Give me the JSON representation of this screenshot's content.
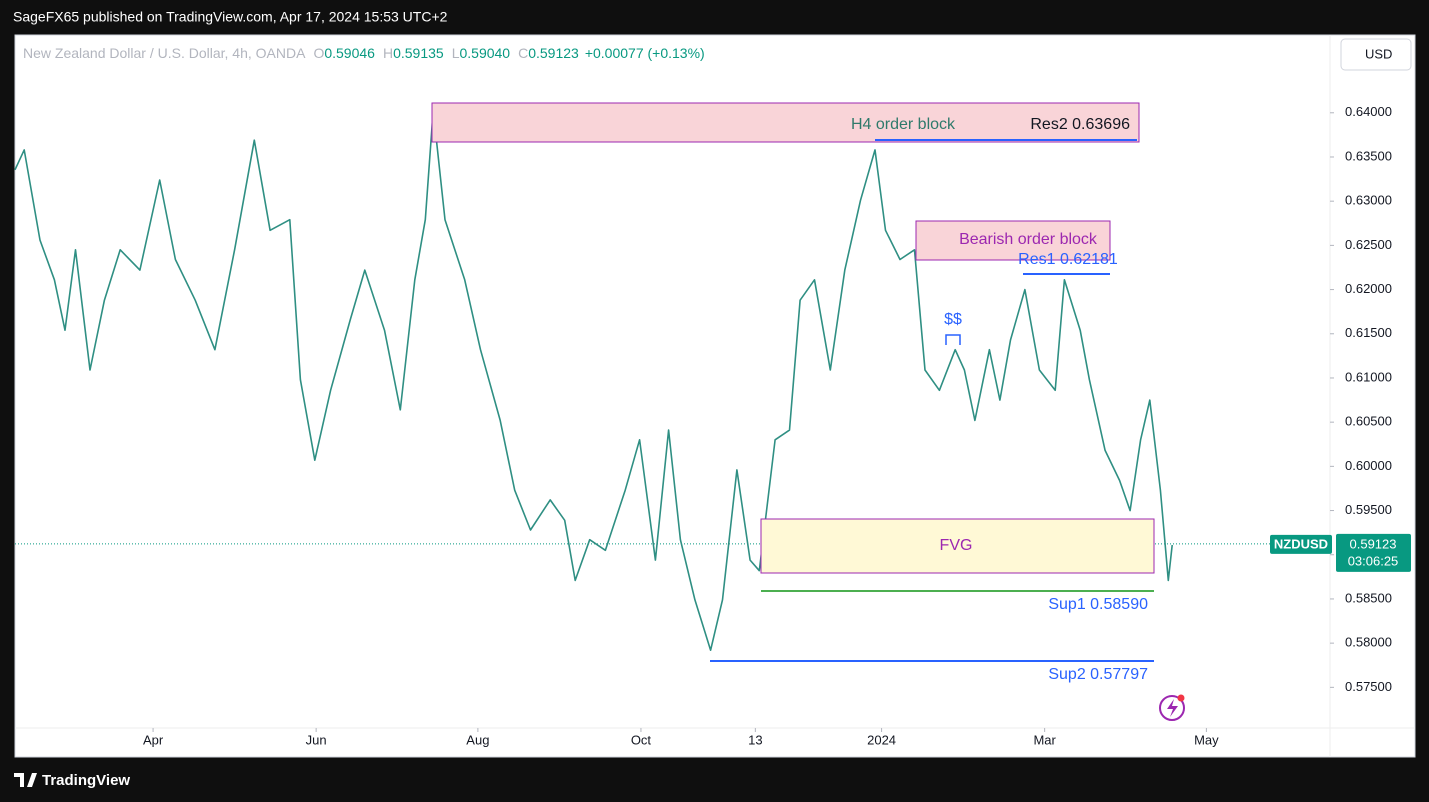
{
  "header": {
    "published": "SageFX65 published on TradingView.com, Apr 17, 2024 15:53 UTC+2"
  },
  "legend": {
    "symbol": "New Zealand Dollar / U.S. Dollar, 4h, OANDA",
    "ohlc": [
      {
        "key": "O",
        "value": "0.59046"
      },
      {
        "key": "H",
        "value": "0.59135"
      },
      {
        "key": "L",
        "value": "0.59040"
      },
      {
        "key": "C",
        "value": "0.59123"
      }
    ],
    "change": "+0.00077 (+0.13%)"
  },
  "currency_button": "USD",
  "chart_data": {
    "type": "line",
    "color": "#2f8f83",
    "x": [
      0,
      0.7,
      1.9,
      3.0,
      3.8,
      4.6,
      5.7,
      6.8,
      8.0,
      9.5,
      11.0,
      12.2,
      13.7,
      15.2,
      16.7,
      18.2,
      19.4,
      20.9,
      21.7,
      22.8,
      24.0,
      25.5,
      26.6,
      28.1,
      29.3,
      30.4,
      31.2,
      31.8,
      32.7,
      34.2,
      35.4,
      36.9,
      38.0,
      39.2,
      40.7,
      41.8,
      42.6,
      43.7,
      44.9,
      46.4,
      47.5,
      48.7,
      49.7,
      50.6,
      51.7,
      52.9,
      53.8,
      54.9,
      55.9,
      56.6,
      57.8,
      58.9,
      59.7,
      60.8,
      62.0,
      63.1,
      64.3,
      65.4,
      66.2,
      67.3,
      68.4,
      69.2,
      70.3,
      71.5,
      72.2,
      73.0,
      74.1,
      74.9,
      75.7,
      76.8,
      77.9,
      79.1,
      79.8,
      81.0,
      81.7,
      82.9,
      84.0,
      84.8,
      85.6,
      86.3,
      87.1,
      87.7,
      88.0
    ],
    "values": [
      0.63355,
      0.6358,
      0.6256,
      0.6211,
      0.6154,
      0.6245,
      0.6109,
      0.6188,
      0.6245,
      0.6222,
      0.6324,
      0.6234,
      0.6188,
      0.6132,
      0.6245,
      0.6369,
      0.6267,
      0.6279,
      0.6098,
      0.6007,
      0.6086,
      0.6166,
      0.6222,
      0.6154,
      0.6064,
      0.6211,
      0.6279,
      0.6403,
      0.6279,
      0.6211,
      0.6132,
      0.6052,
      0.5973,
      0.5928,
      0.5962,
      0.5939,
      0.5871,
      0.5917,
      0.5905,
      0.5973,
      0.603,
      0.5894,
      0.6041,
      0.5917,
      0.5849,
      0.5792,
      0.5849,
      0.5996,
      0.5894,
      0.5882,
      0.603,
      0.6041,
      0.6188,
      0.6211,
      0.6109,
      0.6222,
      0.6301,
      0.6358,
      0.6267,
      0.6234,
      0.6245,
      0.6109,
      0.6086,
      0.6132,
      0.6109,
      0.6052,
      0.6132,
      0.6075,
      0.6143,
      0.62,
      0.6109,
      0.6086,
      0.6211,
      0.6154,
      0.6098,
      0.6018,
      0.5984,
      0.595,
      0.603,
      0.6075,
      0.5973,
      0.5871,
      0.5911
    ],
    "xlim": [
      0,
      100
    ],
    "xticks": [
      {
        "value": 10.5,
        "label": "Apr"
      },
      {
        "value": 22.9,
        "label": "Jun"
      },
      {
        "value": 35.2,
        "label": "Aug"
      },
      {
        "value": 47.6,
        "label": "Oct"
      },
      {
        "value": 56.3,
        "label": "13"
      },
      {
        "value": 65.9,
        "label": "2024"
      },
      {
        "value": 78.3,
        "label": "Mar"
      },
      {
        "value": 90.6,
        "label": "May"
      }
    ],
    "ylim": [
      0.5704,
      0.6488
    ],
    "yticks": [
      {
        "value": 0.575,
        "label": "0.57500"
      },
      {
        "value": 0.58,
        "label": "0.58000"
      },
      {
        "value": 0.585,
        "label": "0.58500"
      },
      {
        "value": 0.59,
        "label": "0.59000"
      },
      {
        "value": 0.595,
        "label": "0.59500"
      },
      {
        "value": 0.6,
        "label": "0.60000"
      },
      {
        "value": 0.605,
        "label": "0.60500"
      },
      {
        "value": 0.61,
        "label": "0.61000"
      },
      {
        "value": 0.615,
        "label": "0.61500"
      },
      {
        "value": 0.62,
        "label": "0.62000"
      },
      {
        "value": 0.625,
        "label": "0.62500"
      },
      {
        "value": 0.63,
        "label": "0.63000"
      },
      {
        "value": 0.635,
        "label": "0.63500"
      },
      {
        "value": 0.64,
        "label": "0.64000"
      }
    ],
    "last_price": {
      "value": 0.59123,
      "label": "0.59123"
    },
    "price_tag": {
      "symbol": "NZDUSD",
      "countdown": "03:06:25"
    }
  },
  "annotations": {
    "h4_block": "H4 order block",
    "res2": "Res2 0.63696",
    "bearish_block": "Bearish order block",
    "res1": "Res1 0.62181",
    "liquidity": "$$",
    "fvg": "FVG",
    "sup1": "Sup1 0.58590",
    "sup2": "Sup2  0.57797"
  },
  "footer": {
    "brand": "TradingView"
  }
}
